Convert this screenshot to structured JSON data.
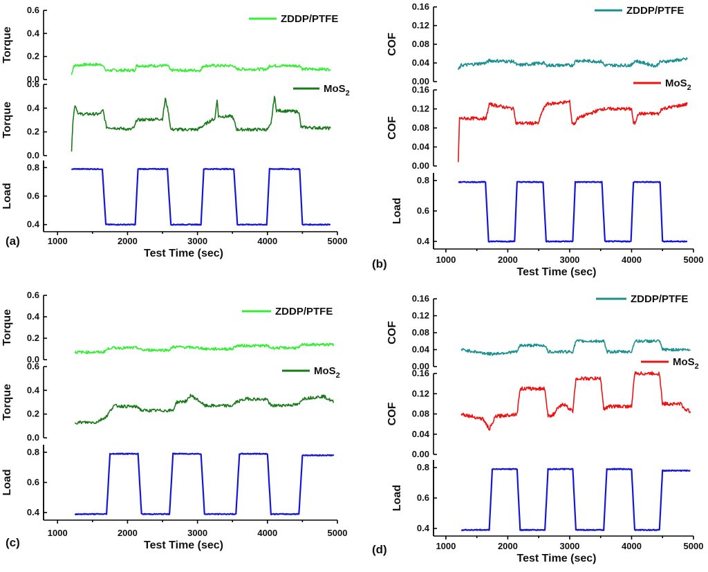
{
  "chart_data": [
    {
      "id": "a",
      "type": "line",
      "panel_label": "(a)",
      "xlabel": "Test Time (sec)",
      "xlim": [
        800,
        5000
      ],
      "xticks": [
        1000,
        2000,
        3000,
        4000,
        5000
      ],
      "subplots": [
        {
          "ylabel": "Torque",
          "ylim": [
            0.0,
            0.6
          ],
          "yticks": [
            "0.0",
            "0.2",
            "0.4",
            "0.6"
          ],
          "series": [
            {
              "name": "ZDDP/PTFE",
              "color": "#33ee33",
              "x": [
                1200,
                1230,
                1400,
                1650,
                1680,
                2100,
                2130,
                2580,
                2610,
                3050,
                3080,
                3520,
                3550,
                4000,
                4030,
                4470,
                4500,
                4900
              ],
              "y": [
                0.04,
                0.12,
                0.13,
                0.13,
                0.08,
                0.08,
                0.12,
                0.12,
                0.08,
                0.08,
                0.12,
                0.12,
                0.09,
                0.09,
                0.12,
                0.12,
                0.09,
                0.09
              ]
            }
          ]
        },
        {
          "ylabel": "Torque",
          "ylim": [
            0.0,
            0.6
          ],
          "yticks": [
            "0.0",
            "0.2",
            "0.4",
            "0.6"
          ],
          "series": [
            {
              "name": "MoS₂",
              "color": "#1a7a1a",
              "x": [
                1200,
                1220,
                1250,
                1300,
                1600,
                1650,
                1700,
                2050,
                2100,
                2130,
                2500,
                2540,
                2580,
                2620,
                3000,
                3050,
                3200,
                3250,
                3280,
                3300,
                3500,
                3530,
                3560,
                4000,
                4050,
                4100,
                4130,
                4450,
                4480,
                4900
              ],
              "y": [
                0.04,
                0.3,
                0.43,
                0.35,
                0.35,
                0.38,
                0.24,
                0.22,
                0.24,
                0.3,
                0.31,
                0.48,
                0.38,
                0.22,
                0.22,
                0.24,
                0.3,
                0.31,
                0.48,
                0.33,
                0.33,
                0.28,
                0.22,
                0.22,
                0.26,
                0.5,
                0.38,
                0.37,
                0.24,
                0.23
              ]
            }
          ]
        },
        {
          "ylabel": "Load",
          "ylim": [
            0.35,
            0.85
          ],
          "yticks": [
            "0.4",
            "0.6",
            "0.8"
          ],
          "series": [
            {
              "name": "Load",
              "color": "#1515d8",
              "x": [
                1200,
                1640,
                1690,
                2110,
                2150,
                2570,
                2620,
                3050,
                3090,
                3520,
                3570,
                3990,
                4030,
                4460,
                4500,
                4900
              ],
              "y": [
                0.79,
                0.79,
                0.4,
                0.4,
                0.79,
                0.79,
                0.4,
                0.4,
                0.79,
                0.79,
                0.4,
                0.4,
                0.79,
                0.79,
                0.4,
                0.4
              ]
            }
          ]
        }
      ]
    },
    {
      "id": "b",
      "type": "line",
      "panel_label": "(b)",
      "xlabel": "Test Time (sec)",
      "xlim": [
        800,
        5000
      ],
      "xticks": [
        1000,
        2000,
        3000,
        4000,
        5000
      ],
      "subplots": [
        {
          "ylabel": "COF",
          "ylim": [
            0.0,
            0.16
          ],
          "yticks": [
            "0.00",
            "0.04",
            "0.08",
            "0.12",
            "0.16"
          ],
          "series": [
            {
              "name": "ZDDP/PTFE",
              "color": "#1a8f8f",
              "x": [
                1200,
                1250,
                1650,
                1700,
                2100,
                2150,
                2580,
                2620,
                3050,
                3100,
                3520,
                3560,
                4000,
                4050,
                4400,
                4450,
                4900
              ],
              "y": [
                0.025,
                0.035,
                0.04,
                0.045,
                0.043,
                0.035,
                0.04,
                0.035,
                0.035,
                0.045,
                0.043,
                0.035,
                0.035,
                0.045,
                0.033,
                0.042,
                0.048
              ]
            }
          ]
        },
        {
          "ylabel": "COF",
          "ylim": [
            0.0,
            0.16
          ],
          "yticks": [
            "0.00",
            "0.04",
            "0.08",
            "0.12",
            "0.16"
          ],
          "series": [
            {
              "name": "MoS₂",
              "color": "#ee1111",
              "x": [
                1200,
                1220,
                1250,
                1650,
                1700,
                2100,
                2130,
                2500,
                2540,
                2580,
                2620,
                3000,
                3040,
                3080,
                3120,
                3520,
                3550,
                4000,
                4030,
                4060,
                4100,
                4450,
                4480,
                4900
              ],
              "y": [
                0.01,
                0.1,
                0.1,
                0.1,
                0.13,
                0.12,
                0.09,
                0.09,
                0.11,
                0.12,
                0.13,
                0.135,
                0.09,
                0.088,
                0.1,
                0.12,
                0.12,
                0.12,
                0.09,
                0.09,
                0.11,
                0.11,
                0.12,
                0.13
              ]
            }
          ]
        },
        {
          "ylabel": "Load",
          "ylim": [
            0.35,
            0.85
          ],
          "yticks": [
            "0.4",
            "0.6",
            "0.8"
          ],
          "series": [
            {
              "name": "Load",
              "color": "#1515d8",
              "x": [
                1200,
                1640,
                1690,
                2110,
                2150,
                2570,
                2620,
                3050,
                3090,
                3520,
                3570,
                3990,
                4030,
                4460,
                4500,
                4900
              ],
              "y": [
                0.79,
                0.79,
                0.4,
                0.4,
                0.79,
                0.79,
                0.4,
                0.4,
                0.79,
                0.79,
                0.4,
                0.4,
                0.79,
                0.79,
                0.4,
                0.4
              ]
            }
          ]
        }
      ]
    },
    {
      "id": "c",
      "type": "line",
      "panel_label": "(c)",
      "xlabel": "Test Time (sec)",
      "xlim": [
        800,
        5000
      ],
      "xticks": [
        1000,
        2000,
        3000,
        4000,
        5000
      ],
      "subplots": [
        {
          "ylabel": "Torque",
          "ylim": [
            0.0,
            0.6
          ],
          "yticks": [
            "0.0",
            "0.2",
            "0.4",
            "0.6"
          ],
          "series": [
            {
              "name": "ZDDP/PTFE",
              "color": "#33ee33",
              "x": [
                1250,
                1650,
                1750,
                2150,
                2200,
                2600,
                2650,
                3050,
                3100,
                3500,
                3550,
                4000,
                4050,
                4450,
                4500,
                4950
              ],
              "y": [
                0.07,
                0.07,
                0.11,
                0.11,
                0.09,
                0.09,
                0.12,
                0.11,
                0.1,
                0.1,
                0.13,
                0.13,
                0.11,
                0.11,
                0.14,
                0.14
              ]
            }
          ]
        },
        {
          "ylabel": "Torque",
          "ylim": [
            0.0,
            0.6
          ],
          "yticks": [
            "0.0",
            "0.2",
            "0.4",
            "0.6"
          ],
          "series": [
            {
              "name": "MoS₂",
              "color": "#1a7a1a",
              "x": [
                1250,
                1550,
                1700,
                1800,
                2150,
                2200,
                2650,
                2700,
                2850,
                2900,
                3050,
                3100,
                3500,
                3550,
                3700,
                4000,
                4050,
                4450,
                4500,
                4800,
                4950
              ],
              "y": [
                0.13,
                0.13,
                0.18,
                0.27,
                0.26,
                0.23,
                0.23,
                0.3,
                0.31,
                0.36,
                0.3,
                0.27,
                0.27,
                0.3,
                0.33,
                0.32,
                0.27,
                0.28,
                0.33,
                0.35,
                0.3
              ]
            }
          ]
        },
        {
          "ylabel": "Load",
          "ylim": [
            0.35,
            0.85
          ],
          "yticks": [
            "0.4",
            "0.6",
            "0.8"
          ],
          "series": [
            {
              "name": "Load",
              "color": "#1515d8",
              "x": [
                1250,
                1700,
                1750,
                2150,
                2200,
                2600,
                2650,
                3050,
                3100,
                3550,
                3600,
                4000,
                4050,
                4450,
                4500,
                4950
              ],
              "y": [
                0.39,
                0.39,
                0.79,
                0.79,
                0.39,
                0.39,
                0.79,
                0.79,
                0.39,
                0.39,
                0.79,
                0.79,
                0.39,
                0.39,
                0.78,
                0.78
              ]
            }
          ]
        }
      ]
    },
    {
      "id": "d",
      "type": "line",
      "panel_label": "(d)",
      "xlabel": "Test Time (sec)",
      "xlim": [
        800,
        5000
      ],
      "xticks": [
        1000,
        2000,
        3000,
        4000,
        5000
      ],
      "subplots": [
        {
          "ylabel": "COF",
          "ylim": [
            0.0,
            0.16
          ],
          "yticks": [
            "0.00",
            "0.04",
            "0.08",
            "0.12",
            "0.16"
          ],
          "series": [
            {
              "name": "ZDDP/PTFE",
              "color": "#1a8f8f",
              "x": [
                1250,
                1700,
                1750,
                2150,
                2200,
                2600,
                2650,
                3050,
                3100,
                3550,
                3600,
                4000,
                4050,
                4450,
                4500,
                4950
              ],
              "y": [
                0.04,
                0.03,
                0.03,
                0.035,
                0.05,
                0.05,
                0.035,
                0.035,
                0.06,
                0.06,
                0.035,
                0.035,
                0.06,
                0.06,
                0.04,
                0.04
              ]
            }
          ]
        },
        {
          "ylabel": "COF",
          "ylim": [
            0.0,
            0.16
          ],
          "yticks": [
            "0.00",
            "0.04",
            "0.08",
            "0.12",
            "0.16"
          ],
          "series": [
            {
              "name": "MoS₂",
              "color": "#ee1111",
              "x": [
                1250,
                1600,
                1700,
                1750,
                1800,
                2150,
                2200,
                2600,
                2650,
                2750,
                2800,
                2900,
                3050,
                3100,
                3500,
                3550,
                3650,
                4000,
                4050,
                4450,
                4500,
                4800,
                4850,
                4950
              ],
              "y": [
                0.08,
                0.07,
                0.05,
                0.06,
                0.075,
                0.08,
                0.13,
                0.13,
                0.075,
                0.08,
                0.09,
                0.1,
                0.085,
                0.15,
                0.15,
                0.09,
                0.095,
                0.095,
                0.16,
                0.16,
                0.1,
                0.1,
                0.09,
                0.085
              ]
            }
          ]
        },
        {
          "ylabel": "Load",
          "ylim": [
            0.35,
            0.85
          ],
          "yticks": [
            "0.4",
            "0.6",
            "0.8"
          ],
          "series": [
            {
              "name": "Load",
              "color": "#1515d8",
              "x": [
                1250,
                1700,
                1750,
                2150,
                2200,
                2600,
                2650,
                3050,
                3100,
                3550,
                3600,
                4000,
                4050,
                4450,
                4500,
                4950
              ],
              "y": [
                0.39,
                0.39,
                0.79,
                0.79,
                0.39,
                0.39,
                0.79,
                0.79,
                0.39,
                0.39,
                0.79,
                0.79,
                0.39,
                0.39,
                0.78,
                0.78
              ]
            }
          ]
        }
      ]
    }
  ]
}
